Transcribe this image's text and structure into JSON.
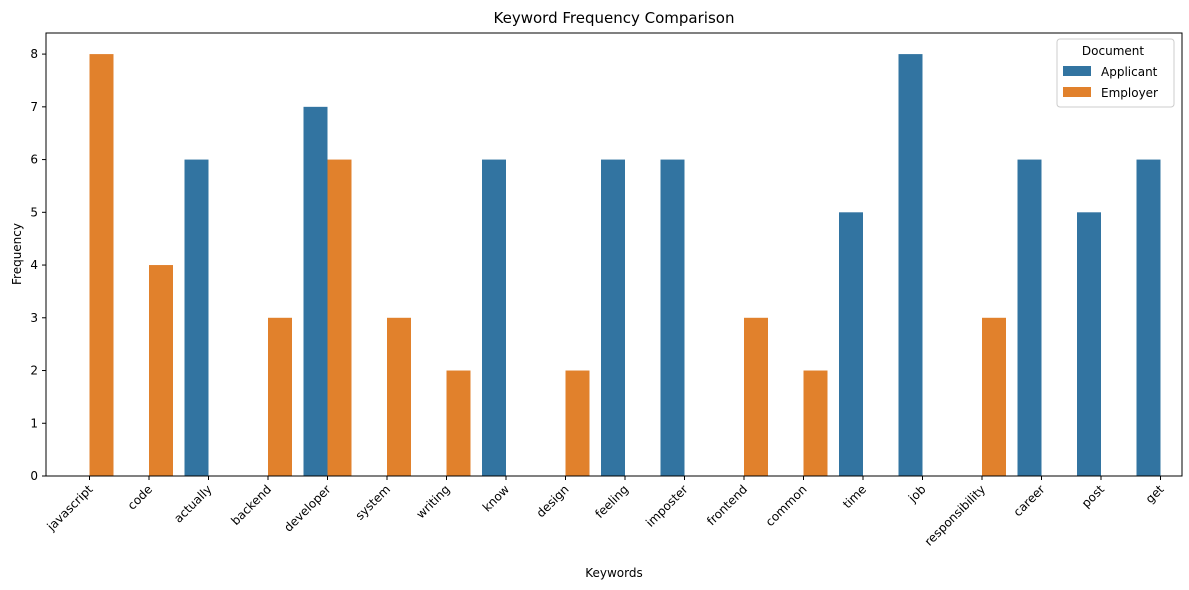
{
  "chart_data": {
    "type": "bar",
    "title": "Keyword Frequency Comparison",
    "xlabel": "Keywords",
    "ylabel": "Frequency",
    "ylim": [
      0,
      8.4
    ],
    "yticks": [
      0,
      1,
      2,
      3,
      4,
      5,
      6,
      7,
      8
    ],
    "grid": false,
    "legend": {
      "title": "Document",
      "placement": "top-right"
    },
    "categories": [
      "javascript",
      "code",
      "actually",
      "backend",
      "developer",
      "system",
      "writing",
      "know",
      "design",
      "feeling",
      "imposter",
      "frontend",
      "common",
      "time",
      "job",
      "responsibility",
      "career",
      "post",
      "get"
    ],
    "series": [
      {
        "name": "Applicant",
        "color": "#3274a1",
        "values": [
          0,
          0,
          6,
          0,
          7,
          0,
          0,
          6,
          0,
          6,
          6,
          0,
          0,
          5,
          8,
          0,
          6,
          5,
          6
        ]
      },
      {
        "name": "Employer",
        "color": "#e1812c",
        "values": [
          8,
          4,
          0,
          3,
          6,
          3,
          2,
          0,
          2,
          0,
          0,
          3,
          2,
          0,
          0,
          3,
          0,
          0,
          0
        ]
      }
    ]
  }
}
